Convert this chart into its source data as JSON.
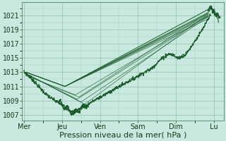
{
  "background_color": "#c8e8e0",
  "plot_bg_color": "#c8e8e0",
  "grid_color": "#90c0b0",
  "line_color": "#1a5c2a",
  "xlabel": "Pression niveau de la mer( hPa )",
  "xlabel_fontsize": 8,
  "tick_fontsize": 7,
  "yticks": [
    1007,
    1009,
    1011,
    1013,
    1015,
    1017,
    1019,
    1021
  ],
  "xtick_labels": [
    "Mer",
    "Jeu",
    "Ven",
    "Sam",
    "Dim",
    "Lu"
  ],
  "ylim": [
    1006.2,
    1022.8
  ],
  "xlim": [
    -0.05,
    5.25
  ]
}
